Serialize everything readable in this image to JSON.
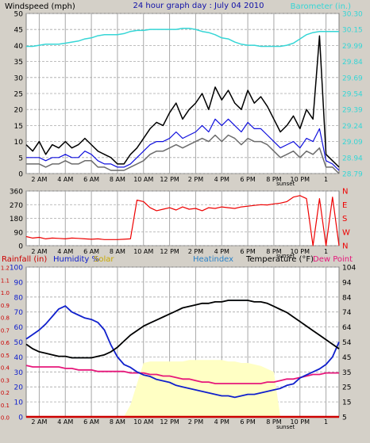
{
  "header": {
    "wind_label": "Windspeed (mph)",
    "title": "24 hour graph day : July 04 2010",
    "baro_label": "Barometer (in.)"
  },
  "panel3_labels": {
    "rain": "Rainfall (in)",
    "humidity": "Humidity %",
    "solar": "Solar",
    "heatindex": "Heatindex",
    "temperature": "Temperature (°F)",
    "dewpoint": "Dew Point"
  },
  "colors": {
    "background": "#d4d0c8",
    "plot": "#ffffff",
    "wind": "#000000",
    "wind_avg": "#1010dd",
    "gust_gray": "#6c6c6c",
    "barometer": "#36d6d6",
    "direction": "#ee0000",
    "temperature": "#000000",
    "humidity": "#1020cc",
    "dewpoint": "#e6177a",
    "heatindex": "#2a82c8",
    "solar": "#ffffc4",
    "rain": "#cc0000",
    "title": "#1010a8"
  },
  "x_ticks": [
    "2 AM",
    "4 AM",
    "6 AM",
    "8 AM",
    "10 AM",
    "12 PM",
    "2 PM",
    "4 PM",
    "6 PM",
    "8 PM",
    "10 PM",
    "1"
  ],
  "sunset_label": "sunset",
  "chart_data": [
    {
      "type": "line",
      "name": "wind",
      "xlabel": "",
      "ylabel": "Windspeed (mph)",
      "ylim": [
        0,
        50
      ],
      "y_ticks": [
        "0",
        "5",
        "10",
        "15",
        "20",
        "25",
        "30",
        "35",
        "40",
        "45",
        "50"
      ],
      "y2label": "Barometer (in.)",
      "y2_ticks": [
        "28.79",
        "28.94",
        "29.09",
        "29.24",
        "29.39",
        "29.54",
        "29.69",
        "29.84",
        "29.99",
        "30.15",
        "30.30"
      ],
      "grid": true,
      "x_hours": [
        0,
        0.5,
        1,
        1.5,
        2,
        2.5,
        3,
        3.5,
        4,
        4.5,
        5,
        5.5,
        6,
        6.5,
        7,
        7.5,
        8,
        8.5,
        9,
        9.5,
        10,
        10.5,
        11,
        11.5,
        12,
        12.5,
        13,
        13.5,
        14,
        14.5,
        15,
        15.5,
        16,
        16.5,
        17,
        17.5,
        18,
        18.5,
        19,
        19.5,
        20,
        20.5,
        21,
        21.5,
        22,
        22.5,
        23,
        23.5,
        24
      ],
      "series": [
        {
          "values": [
            9,
            7,
            10,
            6,
            9,
            8,
            10,
            8,
            9,
            11,
            9,
            7,
            6,
            5,
            3,
            3,
            6,
            8,
            11,
            14,
            16,
            15,
            19,
            22,
            17,
            20,
            22,
            25,
            20,
            27,
            23,
            26,
            22,
            20,
            26,
            22,
            24,
            21,
            17,
            13,
            15,
            18,
            14,
            20,
            17,
            43,
            6,
            4,
            2
          ]
        },
        {
          "values": [
            5,
            5,
            5,
            4,
            5,
            5,
            6,
            5,
            5,
            7,
            6,
            4,
            3,
            3,
            2,
            2,
            3,
            5,
            7,
            9,
            10,
            10,
            11,
            13,
            11,
            12,
            13,
            15,
            13,
            17,
            15,
            17,
            15,
            13,
            16,
            14,
            14,
            12,
            10,
            8,
            9,
            10,
            8,
            11,
            10,
            14,
            4,
            3,
            1
          ]
        },
        {
          "values": [
            3,
            3,
            3,
            2,
            3,
            3,
            4,
            3,
            3,
            4,
            4,
            2,
            2,
            1,
            1,
            1,
            2,
            3,
            4,
            6,
            7,
            7,
            8,
            9,
            8,
            9,
            10,
            11,
            10,
            12,
            10,
            12,
            11,
            9,
            11,
            10,
            10,
            9,
            7,
            5,
            6,
            7,
            5,
            7,
            6,
            8,
            2,
            2,
            0
          ]
        },
        {
          "name": "Barometer",
          "values": [
            29.99,
            29.99,
            30.0,
            30.01,
            30.01,
            30.01,
            30.02,
            30.03,
            30.04,
            30.06,
            30.07,
            30.09,
            30.1,
            30.1,
            30.1,
            30.11,
            30.13,
            30.14,
            30.14,
            30.15,
            30.15,
            30.15,
            30.15,
            30.15,
            30.16,
            30.16,
            30.15,
            30.13,
            30.12,
            30.1,
            30.07,
            30.06,
            30.03,
            30.01,
            30.0,
            30.0,
            29.99,
            29.99,
            29.99,
            29.99,
            30.0,
            30.02,
            30.06,
            30.1,
            30.12,
            30.13,
            30.13,
            30.13,
            30.13
          ]
        }
      ]
    },
    {
      "type": "line",
      "name": "wind direction",
      "ylim": [
        0,
        360
      ],
      "y_ticks": [
        "0",
        "90",
        "180",
        "270",
        "360"
      ],
      "y2_ticks": [
        "N",
        "W",
        "S",
        "E",
        "N"
      ],
      "grid": true,
      "x_hours": [
        0,
        0.5,
        1,
        1.5,
        2,
        2.5,
        3,
        3.5,
        4,
        4.5,
        5,
        5.5,
        6,
        6.5,
        7,
        7.5,
        8,
        8.5,
        9,
        9.5,
        10,
        10.5,
        11,
        11.5,
        12,
        12.5,
        13,
        13.5,
        14,
        14.5,
        15,
        15.5,
        16,
        16.5,
        17,
        17.5,
        18,
        18.5,
        19,
        19.5,
        20,
        20.5,
        21,
        21.5,
        22,
        22.5,
        23,
        23.5,
        24
      ],
      "series": [
        {
          "values": [
            60,
            50,
            55,
            45,
            50,
            48,
            45,
            50,
            48,
            45,
            42,
            45,
            40,
            40,
            40,
            42,
            45,
            300,
            290,
            250,
            230,
            240,
            250,
            235,
            255,
            240,
            245,
            230,
            250,
            245,
            255,
            250,
            245,
            255,
            260,
            265,
            270,
            268,
            275,
            280,
            290,
            320,
            330,
            310,
            0,
            310,
            0,
            320,
            0
          ]
        }
      ]
    },
    {
      "type": "line",
      "name": "temperature, humidity, solar, rain",
      "ylabel": "Humidity %",
      "ylim": [
        0,
        100
      ],
      "y_ticks": [
        "0",
        "10",
        "20",
        "30",
        "40",
        "50",
        "60",
        "70",
        "80",
        "90",
        "100"
      ],
      "rain_ticks": [
        "0.0",
        "0.1",
        "0.2",
        "0.3",
        "0.4",
        "0.5",
        "0.6",
        "0.7",
        "0.8",
        "0.9",
        "1.0",
        "1.1",
        "1.2"
      ],
      "y2label": "Temperature (°F)",
      "y2lim": [
        5,
        104
      ],
      "y2_ticks": [
        "5",
        "15",
        "25",
        "35",
        "45",
        "54",
        "64",
        "74",
        "84",
        "94",
        "104"
      ],
      "grid": true,
      "x_hours": [
        0,
        0.5,
        1,
        1.5,
        2,
        2.5,
        3,
        3.5,
        4,
        4.5,
        5,
        5.5,
        6,
        6.5,
        7,
        7.5,
        8,
        8.5,
        9,
        9.5,
        10,
        10.5,
        11,
        11.5,
        12,
        12.5,
        13,
        13.5,
        14,
        14.5,
        15,
        15.5,
        16,
        16.5,
        17,
        17.5,
        18,
        18.5,
        19,
        19.5,
        20,
        20.5,
        21,
        21.5,
        22,
        22.5,
        23,
        23.5,
        24
      ],
      "series": [
        {
          "name": "Temperature",
          "values": [
            53,
            50,
            48,
            47,
            46,
            45,
            45,
            44,
            44,
            44,
            44,
            45,
            46,
            48,
            51,
            55,
            59,
            62,
            65,
            67,
            69,
            71,
            73,
            75,
            77,
            78,
            79,
            80,
            80,
            81,
            81,
            82,
            82,
            82,
            82,
            81,
            81,
            80,
            78,
            76,
            74,
            71,
            68,
            65,
            62,
            59,
            56,
            53,
            50
          ]
        },
        {
          "name": "Humidity",
          "values": [
            52,
            55,
            58,
            62,
            67,
            72,
            74,
            70,
            68,
            66,
            65,
            63,
            58,
            48,
            40,
            35,
            33,
            30,
            28,
            27,
            25,
            24,
            23,
            21,
            20,
            19,
            18,
            17,
            16,
            15,
            14,
            14,
            13,
            14,
            15,
            15,
            16,
            17,
            18,
            19,
            21,
            22,
            26,
            28,
            30,
            32,
            35,
            40,
            50
          ]
        },
        {
          "name": "Dew Point",
          "values": [
            39,
            38,
            38,
            38,
            38,
            38,
            37,
            37,
            36,
            36,
            36,
            35,
            35,
            35,
            35,
            35,
            34,
            34,
            34,
            33,
            33,
            32,
            32,
            31,
            30,
            30,
            29,
            28,
            28,
            27,
            27,
            27,
            27,
            27,
            27,
            27,
            27,
            28,
            28,
            29,
            30,
            30,
            31,
            32,
            33,
            33,
            34,
            34,
            34
          ]
        },
        {
          "name": "Heatindex",
          "values": [
            53,
            50,
            48,
            47,
            46,
            45,
            45,
            44,
            44,
            44,
            44,
            45,
            46,
            48,
            51,
            55,
            59,
            62,
            65,
            67,
            69,
            71,
            73,
            75,
            77,
            78,
            79,
            80,
            80,
            81,
            81,
            82,
            82,
            82,
            82,
            81,
            81,
            80,
            78,
            76,
            74,
            71,
            68,
            65,
            62,
            59,
            56,
            53,
            50
          ]
        },
        {
          "name": "Solar",
          "values": [
            0,
            0,
            0,
            0,
            0,
            0,
            0,
            0,
            0,
            0,
            0,
            0,
            0,
            0,
            0,
            0,
            8,
            22,
            36,
            37,
            37,
            37,
            37,
            37,
            37,
            38,
            38,
            38,
            38,
            38,
            38,
            37,
            37,
            36,
            36,
            35,
            34,
            32,
            30,
            0,
            0,
            0,
            0,
            0,
            0,
            0,
            0,
            0,
            0
          ]
        },
        {
          "name": "Rainfall",
          "values": [
            0,
            0,
            0,
            0,
            0,
            0,
            0,
            0,
            0,
            0,
            0,
            0,
            0,
            0,
            0,
            0,
            0,
            0,
            0,
            0,
            0,
            0,
            0,
            0,
            0,
            0,
            0,
            0,
            0,
            0,
            0,
            0,
            0,
            0,
            0,
            0,
            0,
            0,
            0,
            0,
            0,
            0,
            0,
            0,
            0,
            0,
            0,
            0,
            0
          ]
        }
      ]
    }
  ]
}
